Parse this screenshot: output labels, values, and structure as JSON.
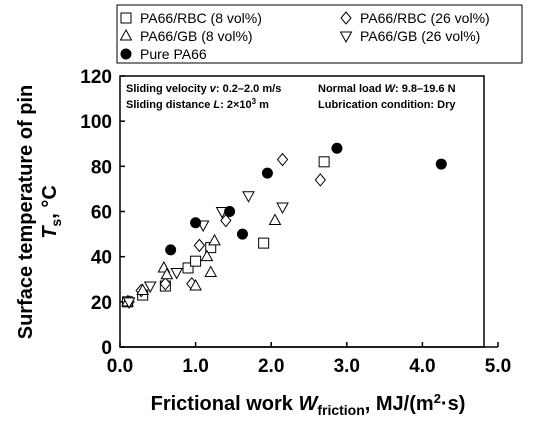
{
  "chart_data": {
    "type": "scatter",
    "xlabel": [
      "Frictional work ",
      "W",
      "friction",
      ", MJ/(m",
      "2",
      "·s)"
    ],
    "ylabel": {
      "line1": "Surface temperature of pin",
      "line2": [
        "T",
        "s",
        ", °C"
      ]
    },
    "annotations": [
      [
        "Sliding velocity ",
        "v",
        ": 0.2–2.0 m/s"
      ],
      [
        "Normal load ",
        "W",
        ": 9.8–19.6 N"
      ],
      [
        "Sliding distance ",
        "L",
        ": 2×10",
        "3",
        " m"
      ],
      [
        "Lubrication condition: Dry"
      ]
    ],
    "xlim": [
      0,
      5
    ],
    "xticks": [
      {
        "value": 0,
        "label": "0.0"
      },
      {
        "value": 1,
        "label": "1.0"
      },
      {
        "value": 2,
        "label": "2.0"
      },
      {
        "value": 3,
        "label": "3.0"
      },
      {
        "value": 4,
        "label": "4.0"
      },
      {
        "value": 5,
        "label": "5.0"
      }
    ],
    "ylim": [
      0,
      120
    ],
    "yticks": [
      0,
      20,
      40,
      60,
      80,
      100,
      120
    ],
    "series": [
      {
        "name": "PA66/RBC (8 vol%)",
        "marker": "square",
        "color": "#000000",
        "x": [
          0.1,
          0.3,
          0.6,
          0.9,
          1.0,
          1.2,
          1.9,
          2.7
        ],
        "values": [
          20,
          23,
          27,
          35,
          38,
          44,
          46,
          82
        ]
      },
      {
        "name": "PA66/RBC (26 vol%)",
        "marker": "diamond",
        "color": "#000000",
        "x": [
          0.12,
          0.28,
          0.6,
          0.95,
          1.05,
          1.4,
          2.15,
          2.65
        ],
        "values": [
          20,
          25,
          28,
          28,
          45,
          56,
          83,
          74
        ]
      },
      {
        "name": "PA66/GB (8 vol%)",
        "marker": "triangle",
        "color": "#000000",
        "x": [
          0.1,
          0.3,
          0.58,
          0.62,
          1.0,
          1.15,
          1.2,
          1.25,
          2.05
        ],
        "values": [
          20,
          25,
          35,
          32,
          27,
          40,
          33,
          47,
          56
        ]
      },
      {
        "name": "PA66/GB (26 vol%)",
        "marker": "triangle-down",
        "color": "#000000",
        "x": [
          0.12,
          0.4,
          0.75,
          1.1,
          1.35,
          1.7,
          2.15
        ],
        "values": [
          20,
          27,
          33,
          54,
          60,
          67,
          62
        ]
      },
      {
        "name": "Pure PA66",
        "marker": "circle-filled",
        "color": "#000000",
        "x": [
          0.67,
          1.0,
          1.45,
          1.62,
          1.95,
          2.87,
          4.25
        ],
        "values": [
          43,
          55,
          60,
          50,
          77,
          88,
          81
        ]
      }
    ]
  }
}
